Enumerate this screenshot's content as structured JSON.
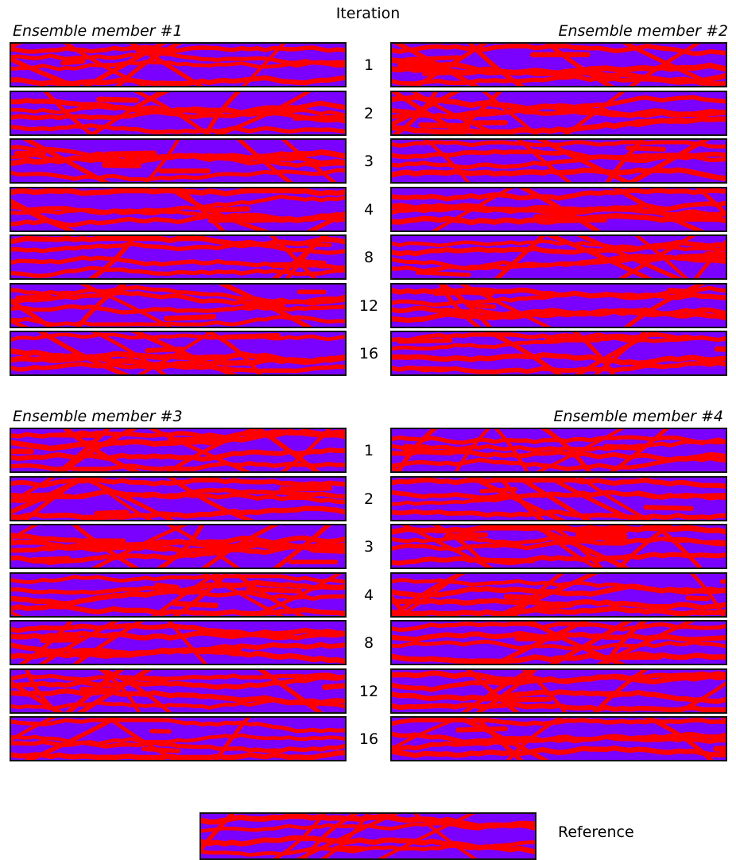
{
  "header": {
    "iteration_title": "Iteration"
  },
  "members": [
    {
      "label": "Ensemble member #1"
    },
    {
      "label": "Ensemble member #2"
    },
    {
      "label": "Ensemble member #3"
    },
    {
      "label": "Ensemble member #4"
    }
  ],
  "iterations": [
    "1",
    "2",
    "3",
    "4",
    "8",
    "12",
    "16"
  ],
  "reference": {
    "label": "Reference"
  },
  "colors": {
    "background": "#7a00ff",
    "channel": "#ff0000",
    "border": "#111111"
  }
}
